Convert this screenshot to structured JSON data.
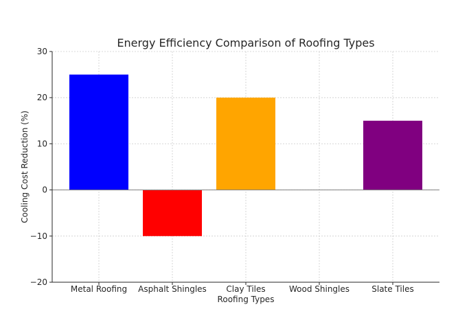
{
  "chart_data": {
    "type": "bar",
    "title": "Energy Efficiency Comparison of Roofing Types",
    "xlabel": "Roofing Types",
    "ylabel": "Cooling Cost Reduction (%)",
    "categories": [
      "Metal Roofing",
      "Asphalt Shingles",
      "Clay Tiles",
      "Wood Shingles",
      "Slate Tiles"
    ],
    "values": [
      25,
      -10,
      20,
      0,
      15
    ],
    "colors": [
      "#0000ff",
      "#ff0000",
      "#ffa500",
      "#008000",
      "#800080"
    ],
    "ylim": [
      -20,
      30
    ],
    "yticks": [
      -20,
      -10,
      0,
      10,
      20,
      30
    ],
    "grid": true
  }
}
